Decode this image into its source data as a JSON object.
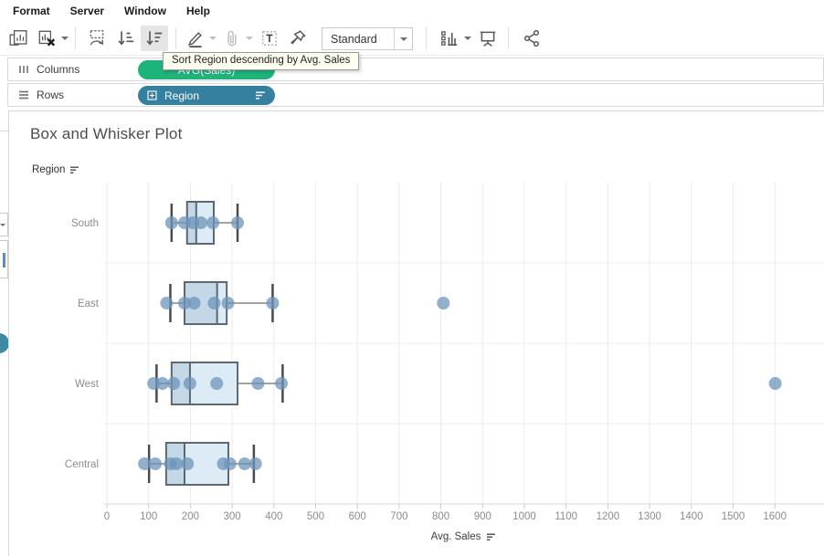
{
  "menu": {
    "items": [
      "Format",
      "Server",
      "Window",
      "Help"
    ]
  },
  "toolbar": {
    "tooltip": "Sort Region descending by Avg. Sales",
    "view_selector_value": "Standard"
  },
  "shelves": {
    "columns": {
      "label": "Columns",
      "pill": "AVG(Sales)",
      "pill_color": "#1db47c"
    },
    "rows": {
      "label": "Rows",
      "pill": "Region",
      "pill_color": "#35809f"
    }
  },
  "sheet": {
    "title": "Box and Whisker Plot",
    "row_field_label": "Region",
    "axis_label": "Avg. Sales"
  },
  "chart_data": {
    "type": "boxplot",
    "orientation": "horizontal",
    "title": "Box and Whisker Plot",
    "categories": [
      "South",
      "East",
      "West",
      "Central"
    ],
    "xlabel": "Avg. Sales",
    "x_ticks": [
      0,
      100,
      200,
      300,
      400,
      500,
      600,
      700,
      800,
      900,
      1000,
      1100,
      1200,
      1300,
      1400,
      1500,
      1600
    ],
    "xlim": [
      0,
      1720
    ],
    "grid": "vertical",
    "legend": "none",
    "series": [
      {
        "category": "South",
        "whisker_low": 155,
        "q1": 192,
        "median": 214,
        "q3": 256,
        "whisker_high": 313,
        "points": [
          155,
          186,
          206,
          225,
          254,
          313
        ]
      },
      {
        "category": "East",
        "whisker_low": 152,
        "q1": 186,
        "median": 264,
        "q3": 287,
        "whisker_high": 397,
        "points": [
          143,
          186,
          209,
          257,
          290,
          397,
          806
        ]
      },
      {
        "category": "West",
        "whisker_low": 119,
        "q1": 155,
        "median": 199,
        "q3": 313,
        "whisker_high": 421,
        "points": [
          112,
          133,
          160,
          199,
          263,
          362,
          418,
          1601
        ]
      },
      {
        "category": "Central",
        "whisker_low": 101,
        "q1": 142,
        "median": 186,
        "q3": 291,
        "whisker_high": 352,
        "points": [
          90,
          116,
          152,
          166,
          193,
          279,
          295,
          330,
          356
        ]
      }
    ],
    "colors": {
      "box_fill_lower": "#c3d7e6",
      "box_fill_upper": "#dcebf5",
      "box_border": "#5d686f",
      "whisker": "#4a4a4a",
      "point": "#6e94ba",
      "gridline": "#ebebeb",
      "axis_text": "#8c8c8c"
    }
  }
}
